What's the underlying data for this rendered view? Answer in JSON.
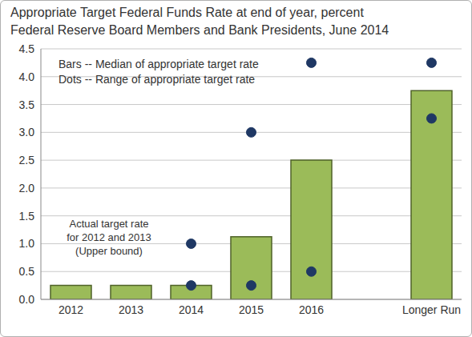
{
  "chart_data": {
    "type": "bar",
    "title": "Appropriate Target Federal Funds Rate at end of year, percent",
    "subtitle": "Federal Reserve Board Members and Bank Presidents, June 2014",
    "annotation": [
      "Actual target rate",
      "for 2012 and 2013",
      "(Upper bound)"
    ],
    "categories": [
      "2012",
      "2013",
      "2014",
      "2015",
      "2016",
      null,
      "Longer Run"
    ],
    "series": [
      {
        "name": "Bars -- Median of appropriate target rate",
        "type": "bar",
        "color": "#9bbb59",
        "values": [
          0.25,
          0.25,
          0.25,
          1.125,
          2.5,
          null,
          3.75
        ]
      },
      {
        "name": "Dots -- Range of appropriate target rate",
        "type": "scatter",
        "color": "#1f3864",
        "marker": "circle",
        "low": [
          null,
          null,
          0.25,
          0.25,
          0.5,
          null,
          3.25
        ],
        "high": [
          null,
          null,
          1.0,
          3.0,
          4.25,
          null,
          4.25
        ]
      }
    ],
    "ylim": [
      0,
      4.5
    ],
    "yticks": [
      {
        "value": 0,
        "label": "0.0"
      },
      {
        "value": 0.5,
        "label": "0.5"
      },
      {
        "value": 1,
        "label": "1.0"
      },
      {
        "value": 1.5,
        "label": "1.5"
      },
      {
        "value": 2,
        "label": "2.0"
      },
      {
        "value": 2.5,
        "label": "2.5"
      },
      {
        "value": 3,
        "label": "3.0"
      },
      {
        "value": 3.5,
        "label": "3.5"
      },
      {
        "value": 4,
        "label": "4.0"
      },
      {
        "value": 4.5,
        "label": "4.5"
      }
    ],
    "grid": true
  }
}
